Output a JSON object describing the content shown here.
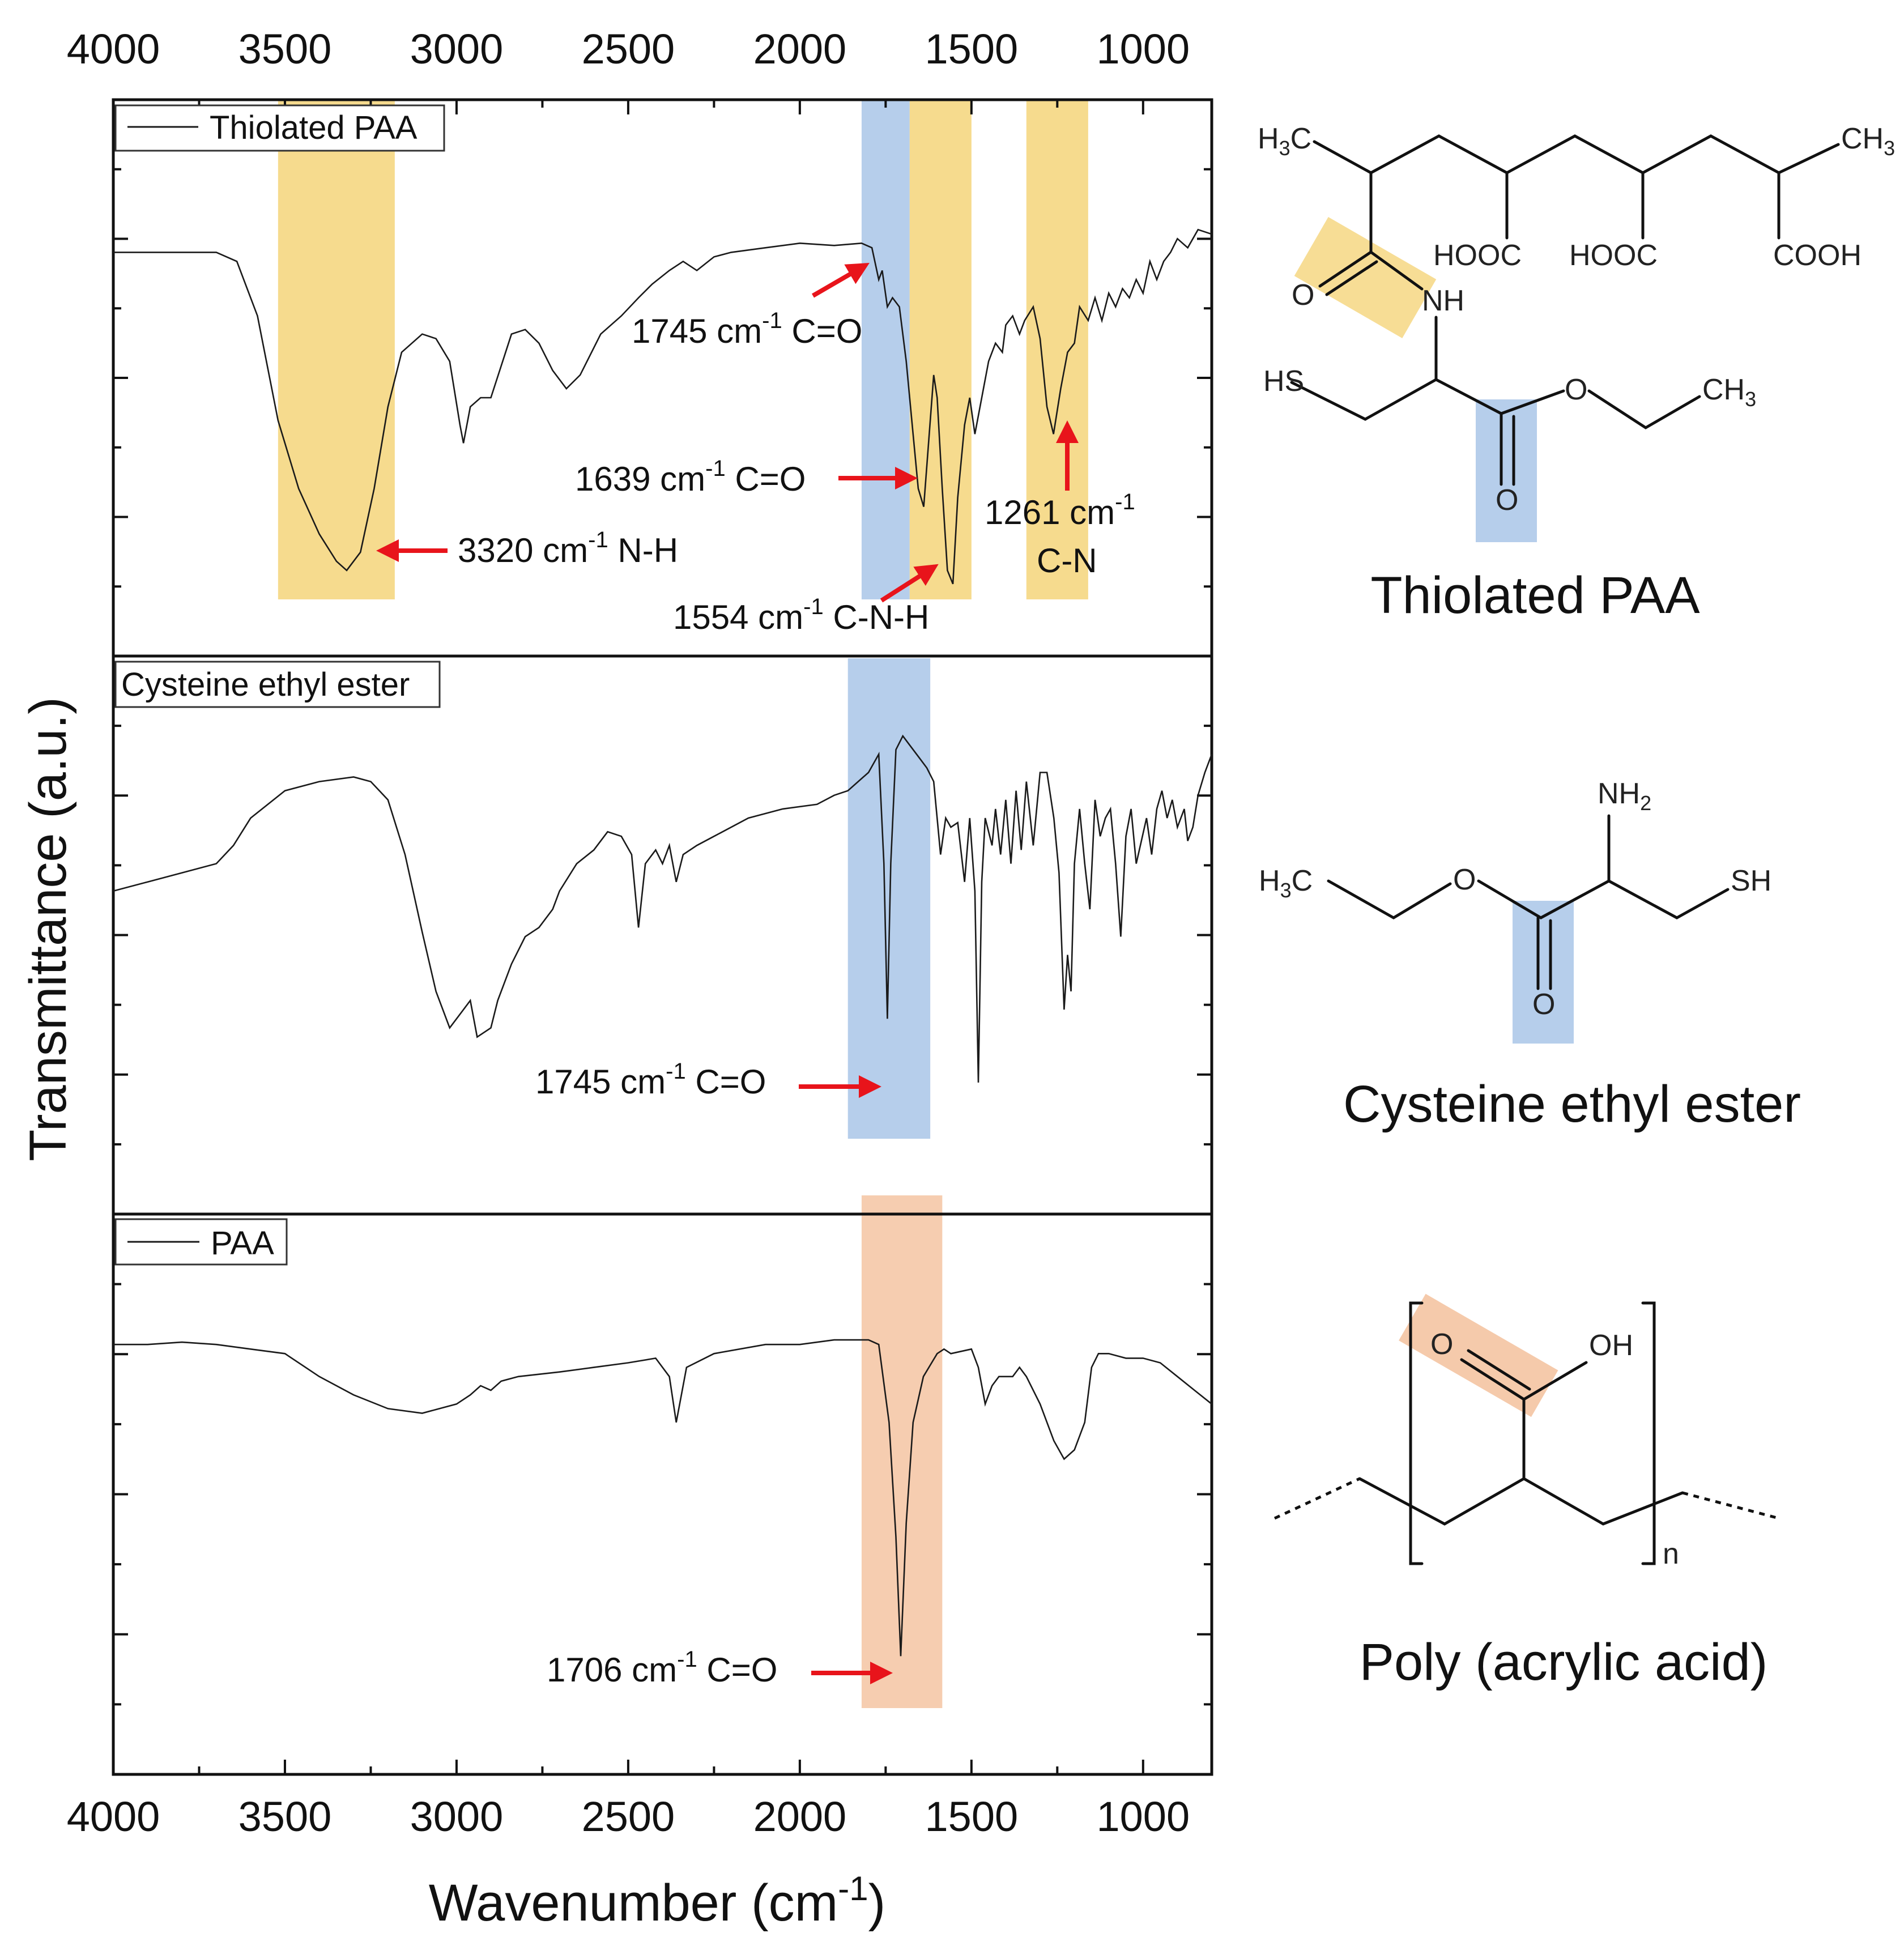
{
  "chart_data": {
    "type": "line",
    "xlabel": "Wavenumber (cm-1)",
    "ylabel": "Transmittance (a.u.)",
    "xlim": [
      4000,
      800
    ],
    "x_ticks": [
      "4000",
      "3500",
      "3000",
      "2500",
      "2000",
      "1500",
      "1000"
    ],
    "panels": [
      {
        "name": "Thiolated PAA",
        "legend": "Thiolated PAA",
        "legend_has_line": true,
        "highlight_bands": [
          {
            "from": 3520,
            "to": 3180,
            "color": "#f5d57a"
          },
          {
            "from": 1820,
            "to": 1680,
            "color": "#a9c6e8"
          },
          {
            "from": 1680,
            "to": 1500,
            "color": "#f5d57a"
          },
          {
            "from": 1340,
            "to": 1160,
            "color": "#f5d57a"
          }
        ],
        "points": [
          [
            4000,
            0.18
          ],
          [
            3700,
            0.18
          ],
          [
            3640,
            0.2
          ],
          [
            3580,
            0.32
          ],
          [
            3520,
            0.55
          ],
          [
            3460,
            0.7
          ],
          [
            3400,
            0.8
          ],
          [
            3350,
            0.86
          ],
          [
            3320,
            0.88
          ],
          [
            3280,
            0.84
          ],
          [
            3240,
            0.7
          ],
          [
            3200,
            0.52
          ],
          [
            3160,
            0.4
          ],
          [
            3100,
            0.36
          ],
          [
            3060,
            0.37
          ],
          [
            3020,
            0.42
          ],
          [
            2990,
            0.56
          ],
          [
            2980,
            0.6
          ],
          [
            2960,
            0.52
          ],
          [
            2930,
            0.5
          ],
          [
            2900,
            0.5
          ],
          [
            2870,
            0.43
          ],
          [
            2840,
            0.36
          ],
          [
            2800,
            0.35
          ],
          [
            2760,
            0.38
          ],
          [
            2720,
            0.44
          ],
          [
            2680,
            0.48
          ],
          [
            2640,
            0.45
          ],
          [
            2580,
            0.36
          ],
          [
            2520,
            0.32
          ],
          [
            2470,
            0.28
          ],
          [
            2430,
            0.25
          ],
          [
            2380,
            0.22
          ],
          [
            2340,
            0.2
          ],
          [
            2300,
            0.22
          ],
          [
            2250,
            0.19
          ],
          [
            2200,
            0.18
          ],
          [
            2100,
            0.17
          ],
          [
            2000,
            0.16
          ],
          [
            1900,
            0.165
          ],
          [
            1820,
            0.16
          ],
          [
            1790,
            0.17
          ],
          [
            1770,
            0.24
          ],
          [
            1760,
            0.22
          ],
          [
            1745,
            0.3
          ],
          [
            1730,
            0.28
          ],
          [
            1710,
            0.3
          ],
          [
            1690,
            0.42
          ],
          [
            1670,
            0.58
          ],
          [
            1655,
            0.7
          ],
          [
            1639,
            0.74
          ],
          [
            1625,
            0.6
          ],
          [
            1610,
            0.45
          ],
          [
            1600,
            0.5
          ],
          [
            1585,
            0.7
          ],
          [
            1570,
            0.88
          ],
          [
            1554,
            0.91
          ],
          [
            1540,
            0.72
          ],
          [
            1520,
            0.56
          ],
          [
            1505,
            0.5
          ],
          [
            1490,
            0.58
          ],
          [
            1470,
            0.5
          ],
          [
            1450,
            0.42
          ],
          [
            1430,
            0.38
          ],
          [
            1410,
            0.4
          ],
          [
            1400,
            0.34
          ],
          [
            1380,
            0.32
          ],
          [
            1360,
            0.36
          ],
          [
            1345,
            0.33
          ],
          [
            1320,
            0.3
          ],
          [
            1300,
            0.37
          ],
          [
            1280,
            0.52
          ],
          [
            1261,
            0.58
          ],
          [
            1240,
            0.48
          ],
          [
            1220,
            0.4
          ],
          [
            1200,
            0.38
          ],
          [
            1185,
            0.3
          ],
          [
            1160,
            0.33
          ],
          [
            1140,
            0.28
          ],
          [
            1120,
            0.33
          ],
          [
            1100,
            0.27
          ],
          [
            1080,
            0.3
          ],
          [
            1060,
            0.26
          ],
          [
            1040,
            0.28
          ],
          [
            1020,
            0.24
          ],
          [
            1000,
            0.27
          ],
          [
            980,
            0.2
          ],
          [
            960,
            0.24
          ],
          [
            940,
            0.2
          ],
          [
            920,
            0.18
          ],
          [
            900,
            0.15
          ],
          [
            870,
            0.17
          ],
          [
            840,
            0.13
          ],
          [
            800,
            0.14
          ]
        ]
      },
      {
        "name": "Cysteine ethyl ester",
        "legend": "Cysteine ethyl ester",
        "legend_has_line": false,
        "highlight_bands": [
          {
            "from": 1860,
            "to": 1620,
            "color": "#a9c6e8"
          }
        ],
        "points": [
          [
            4000,
            0.36
          ],
          [
            3900,
            0.34
          ],
          [
            3800,
            0.32
          ],
          [
            3700,
            0.3
          ],
          [
            3650,
            0.26
          ],
          [
            3600,
            0.2
          ],
          [
            3500,
            0.14
          ],
          [
            3400,
            0.12
          ],
          [
            3300,
            0.11
          ],
          [
            3250,
            0.12
          ],
          [
            3200,
            0.16
          ],
          [
            3150,
            0.28
          ],
          [
            3100,
            0.45
          ],
          [
            3060,
            0.58
          ],
          [
            3020,
            0.66
          ],
          [
            2980,
            0.62
          ],
          [
            2960,
            0.6
          ],
          [
            2940,
            0.68
          ],
          [
            2900,
            0.66
          ],
          [
            2880,
            0.6
          ],
          [
            2840,
            0.52
          ],
          [
            2800,
            0.46
          ],
          [
            2760,
            0.44
          ],
          [
            2720,
            0.4
          ],
          [
            2700,
            0.36
          ],
          [
            2650,
            0.3
          ],
          [
            2600,
            0.27
          ],
          [
            2560,
            0.23
          ],
          [
            2520,
            0.24
          ],
          [
            2490,
            0.28
          ],
          [
            2470,
            0.44
          ],
          [
            2450,
            0.3
          ],
          [
            2420,
            0.27
          ],
          [
            2400,
            0.3
          ],
          [
            2380,
            0.26
          ],
          [
            2360,
            0.34
          ],
          [
            2340,
            0.28
          ],
          [
            2300,
            0.26
          ],
          [
            2250,
            0.24
          ],
          [
            2150,
            0.2
          ],
          [
            2050,
            0.18
          ],
          [
            1950,
            0.17
          ],
          [
            1900,
            0.15
          ],
          [
            1860,
            0.14
          ],
          [
            1800,
            0.1
          ],
          [
            1770,
            0.06
          ],
          [
            1755,
            0.3
          ],
          [
            1745,
            0.64
          ],
          [
            1735,
            0.3
          ],
          [
            1720,
            0.05
          ],
          [
            1700,
            0.02
          ],
          [
            1680,
            0.04
          ],
          [
            1650,
            0.07
          ],
          [
            1630,
            0.09
          ],
          [
            1610,
            0.12
          ],
          [
            1590,
            0.28
          ],
          [
            1575,
            0.2
          ],
          [
            1560,
            0.22
          ],
          [
            1540,
            0.21
          ],
          [
            1520,
            0.34
          ],
          [
            1505,
            0.2
          ],
          [
            1490,
            0.36
          ],
          [
            1480,
            0.78
          ],
          [
            1470,
            0.34
          ],
          [
            1460,
            0.2
          ],
          [
            1440,
            0.26
          ],
          [
            1430,
            0.18
          ],
          [
            1415,
            0.28
          ],
          [
            1400,
            0.16
          ],
          [
            1385,
            0.3
          ],
          [
            1370,
            0.14
          ],
          [
            1355,
            0.27
          ],
          [
            1340,
            0.12
          ],
          [
            1320,
            0.26
          ],
          [
            1300,
            0.1
          ],
          [
            1280,
            0.1
          ],
          [
            1260,
            0.2
          ],
          [
            1245,
            0.32
          ],
          [
            1230,
            0.62
          ],
          [
            1220,
            0.5
          ],
          [
            1210,
            0.58
          ],
          [
            1200,
            0.3
          ],
          [
            1185,
            0.18
          ],
          [
            1170,
            0.3
          ],
          [
            1155,
            0.4
          ],
          [
            1140,
            0.16
          ],
          [
            1125,
            0.24
          ],
          [
            1110,
            0.2
          ],
          [
            1095,
            0.18
          ],
          [
            1080,
            0.3
          ],
          [
            1065,
            0.46
          ],
          [
            1050,
            0.24
          ],
          [
            1035,
            0.18
          ],
          [
            1020,
            0.3
          ],
          [
            1005,
            0.25
          ],
          [
            990,
            0.2
          ],
          [
            975,
            0.28
          ],
          [
            960,
            0.18
          ],
          [
            945,
            0.14
          ],
          [
            930,
            0.2
          ],
          [
            915,
            0.16
          ],
          [
            900,
            0.22
          ],
          [
            880,
            0.18
          ],
          [
            870,
            0.25
          ],
          [
            855,
            0.22
          ],
          [
            840,
            0.15
          ],
          [
            820,
            0.1
          ],
          [
            800,
            0.06
          ]
        ]
      },
      {
        "name": "PAA",
        "legend": "PAA",
        "legend_has_line": true,
        "highlight_bands": [
          {
            "from": 1820,
            "to": 1585,
            "color": "#f4c4a2"
          }
        ],
        "points": [
          [
            4000,
            0.13
          ],
          [
            3900,
            0.13
          ],
          [
            3800,
            0.125
          ],
          [
            3700,
            0.13
          ],
          [
            3600,
            0.14
          ],
          [
            3500,
            0.15
          ],
          [
            3400,
            0.2
          ],
          [
            3300,
            0.24
          ],
          [
            3200,
            0.27
          ],
          [
            3100,
            0.28
          ],
          [
            3000,
            0.26
          ],
          [
            2960,
            0.24
          ],
          [
            2930,
            0.22
          ],
          [
            2900,
            0.23
          ],
          [
            2870,
            0.21
          ],
          [
            2820,
            0.2
          ],
          [
            2700,
            0.19
          ],
          [
            2600,
            0.18
          ],
          [
            2500,
            0.17
          ],
          [
            2420,
            0.16
          ],
          [
            2380,
            0.2
          ],
          [
            2360,
            0.3
          ],
          [
            2350,
            0.26
          ],
          [
            2330,
            0.18
          ],
          [
            2250,
            0.15
          ],
          [
            2100,
            0.13
          ],
          [
            2000,
            0.13
          ],
          [
            1900,
            0.12
          ],
          [
            1800,
            0.12
          ],
          [
            1770,
            0.13
          ],
          [
            1740,
            0.3
          ],
          [
            1720,
            0.55
          ],
          [
            1706,
            0.81
          ],
          [
            1690,
            0.52
          ],
          [
            1670,
            0.3
          ],
          [
            1640,
            0.2
          ],
          [
            1600,
            0.15
          ],
          [
            1580,
            0.14
          ],
          [
            1560,
            0.15
          ],
          [
            1500,
            0.14
          ],
          [
            1480,
            0.18
          ],
          [
            1460,
            0.26
          ],
          [
            1440,
            0.22
          ],
          [
            1420,
            0.2
          ],
          [
            1400,
            0.2
          ],
          [
            1380,
            0.2
          ],
          [
            1360,
            0.18
          ],
          [
            1340,
            0.2
          ],
          [
            1300,
            0.26
          ],
          [
            1260,
            0.34
          ],
          [
            1230,
            0.38
          ],
          [
            1200,
            0.36
          ],
          [
            1170,
            0.3
          ],
          [
            1150,
            0.18
          ],
          [
            1130,
            0.15
          ],
          [
            1100,
            0.15
          ],
          [
            1050,
            0.16
          ],
          [
            1000,
            0.16
          ],
          [
            950,
            0.17
          ],
          [
            900,
            0.2
          ],
          [
            850,
            0.23
          ],
          [
            800,
            0.26
          ]
        ]
      }
    ],
    "annotations": [
      {
        "text": "1745 cm",
        "sup": "-1",
        "tail": " C=O",
        "panel": "Thiolated PAA"
      },
      {
        "text": "1639 cm",
        "sup": "-1",
        "tail": " C=O",
        "panel": "Thiolated PAA"
      },
      {
        "text": "3320 cm",
        "sup": "-1",
        "tail": " N-H",
        "panel": "Thiolated PAA"
      },
      {
        "text": "1554 cm",
        "sup": "-1",
        "tail": " C-N-H",
        "panel": "Thiolated PAA"
      },
      {
        "text": "1261 cm",
        "sup": "-1",
        "tail": "",
        "panel": "Thiolated PAA"
      },
      {
        "text": "C-N",
        "sup": "",
        "tail": "",
        "panel": "Thiolated PAA"
      },
      {
        "text": "1745 cm",
        "sup": "-1",
        "tail": " C=O",
        "panel": "Cysteine ethyl ester"
      },
      {
        "text": "1706 cm",
        "sup": "-1",
        "tail": " C=O",
        "panel": "PAA"
      }
    ]
  },
  "structures": {
    "thiolated_paa": {
      "caption": "Thiolated PAA",
      "atoms": {
        "h3c_left": "H",
        "h3c_left_sub": "3",
        "h3c_left_c": "C",
        "ch3_right_c": "CH",
        "ch3_right_sub": "3",
        "hooc1": "HOOC",
        "hooc2": "HOOC",
        "cooh": "COOH",
        "o_amide": "O",
        "nh": "NH",
        "hs": "HS",
        "o_ester": "O",
        "o_carbonyl": "O",
        "ch3_ester_c": "CH",
        "ch3_ester_sub": "3"
      }
    },
    "cysteine_ethyl_ester": {
      "caption": "Cysteine ethyl ester",
      "atoms": {
        "nh2": "NH",
        "nh2_sub": "2",
        "h3c": "H",
        "h3c_sub": "3",
        "h3c_c": "C",
        "o_ester": "O",
        "sh": "SH",
        "o_carbonyl": "O"
      }
    },
    "paa": {
      "caption": "Poly (acrylic acid)",
      "atoms": {
        "o": "O",
        "oh": "OH",
        "n": "n"
      }
    }
  },
  "colors": {
    "arrow": "#e8141b",
    "yellow_band": "#f5d57a",
    "blue_band": "#a9c6e8",
    "orange_band": "#f4c4a2",
    "spectrum": "#1a1a1a"
  }
}
